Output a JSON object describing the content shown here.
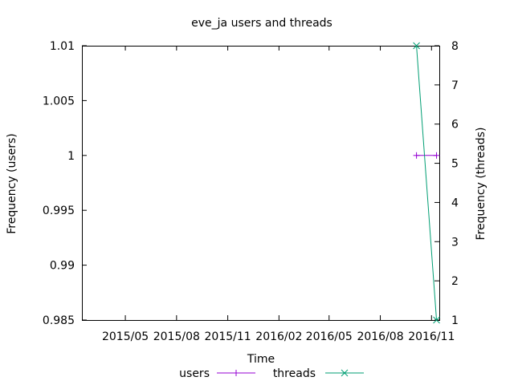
{
  "chart_data": {
    "type": "line",
    "title": "eve_ja users and threads",
    "xlabel": "Time",
    "ylabel": "Frequency (users)",
    "y2label": "Frequency (threads)",
    "x_ticks": [
      "2015/05",
      "2015/08",
      "2015/11",
      "2016/02",
      "2016/05",
      "2016/08",
      "2016/11"
    ],
    "xlim": [
      "2015-02-12",
      "2016-11-15"
    ],
    "ylim": [
      0.985,
      1.01
    ],
    "y_ticks": [
      "0.985",
      "0.99",
      "0.995",
      "1",
      "1.005",
      "1.01"
    ],
    "y2lim": [
      1,
      8
    ],
    "y2_ticks": [
      "1",
      "2",
      "3",
      "4",
      "5",
      "6",
      "7",
      "8"
    ],
    "grid": false,
    "legend": "bottom",
    "series": [
      {
        "name": "users",
        "axis": "left",
        "color": "#9400d3",
        "marker": "plus",
        "points": [
          {
            "x": "2016-10-05",
            "y": 1
          },
          {
            "x": "2016-11-10",
            "y": 1
          }
        ]
      },
      {
        "name": "threads",
        "axis": "right",
        "color": "#009e73",
        "marker": "cross",
        "points": [
          {
            "x": "2016-10-05",
            "y": 8
          },
          {
            "x": "2016-11-10",
            "y": 1
          }
        ]
      }
    ]
  }
}
